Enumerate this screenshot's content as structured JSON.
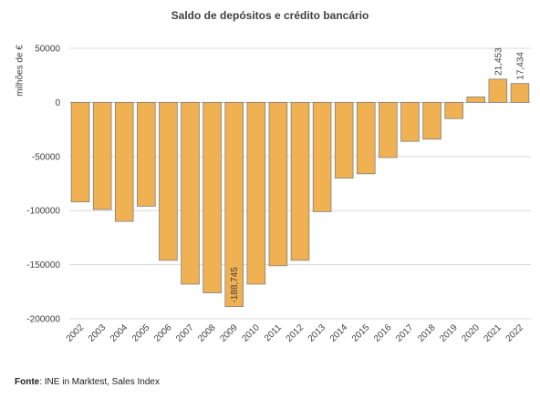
{
  "chart_data": {
    "type": "bar",
    "title": "Saldo de depósitos e crédito bancário",
    "ylabel": "milhões de €",
    "xlabel": "",
    "categories": [
      "2002",
      "2003",
      "2004",
      "2005",
      "2006",
      "2007",
      "2008",
      "2009",
      "2010",
      "2011",
      "2012",
      "2013",
      "2014",
      "2015",
      "2016",
      "2017",
      "2018",
      "2019",
      "2020",
      "2021",
      "2022"
    ],
    "values": [
      -92000,
      -99000,
      -110000,
      -96000,
      -146000,
      -168000,
      -176000,
      -188745,
      -168000,
      -151000,
      -146000,
      -101000,
      -70000,
      -66000,
      -51000,
      -36000,
      -34000,
      -15000,
      5000,
      21453,
      17434
    ],
    "data_labels": {
      "7": "-188,745",
      "19": "21,453",
      "20": "17,434"
    },
    "yticks": [
      50000,
      0,
      -50000,
      -100000,
      -150000,
      -200000
    ],
    "ytick_labels": [
      "50000",
      "0",
      "-50000",
      "-100000",
      "-150000",
      "-200000"
    ],
    "ylim": [
      -200000,
      50000
    ],
    "grid": true,
    "legend": "none",
    "bar_color": "#F0B153",
    "bar_edge_color": "#7F7F7F"
  },
  "footer": {
    "source_label": "Fonte",
    "source_text": ": INE in Marktest, Sales Index"
  }
}
